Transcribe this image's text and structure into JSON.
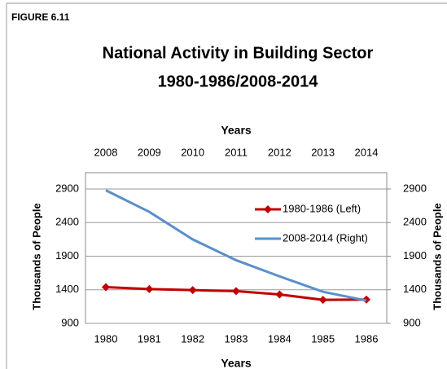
{
  "chart_data": {
    "type": "line",
    "figure_label": "FIGURE 6.11",
    "title": "National Activity in Building Sector",
    "subtitle": "1980-1986/2008-2014",
    "xlabel": "Years",
    "x2label": "Years",
    "ylabel": "Thousands of People",
    "y2label": "Thousands of People",
    "categories": [
      "1980",
      "1981",
      "1982",
      "1983",
      "1984",
      "1985",
      "1986"
    ],
    "x2_categories": [
      "2008",
      "2009",
      "2010",
      "2011",
      "2012",
      "2013",
      "2014"
    ],
    "ylim": [
      900,
      2900
    ],
    "yticks": [
      900,
      1400,
      1900,
      2400,
      2900
    ],
    "y2lim": [
      900,
      2900
    ],
    "y2ticks": [
      900,
      1400,
      1900,
      2400,
      2900
    ],
    "grid": true,
    "legend": "upper right",
    "series": [
      {
        "name": "1980-1986 (Left)",
        "color": "#c00000",
        "marker": "diamond",
        "values": [
          1440,
          1410,
          1395,
          1380,
          1330,
          1250,
          1255
        ]
      },
      {
        "name": "2008-2014 (Right)",
        "color": "#5b8fcc",
        "axis": "y2",
        "x_axis": "x2",
        "values": [
          2880,
          2560,
          2150,
          1840,
          1600,
          1370,
          1240
        ]
      }
    ]
  }
}
